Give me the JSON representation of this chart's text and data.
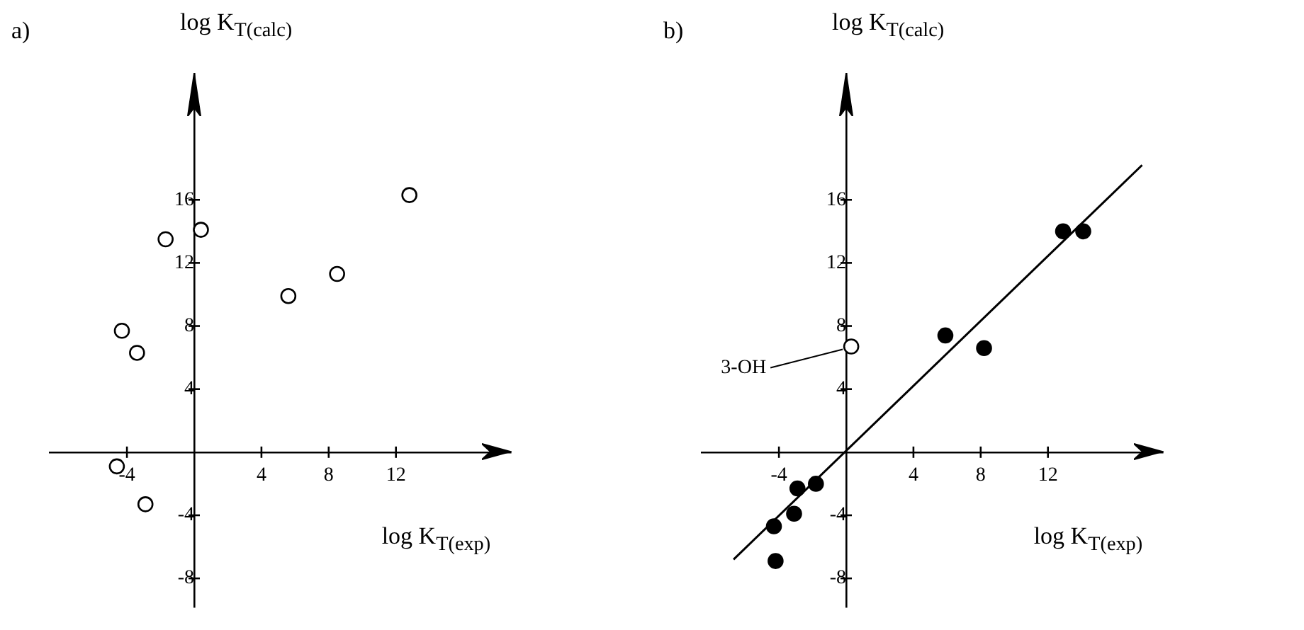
{
  "chart_data": [
    {
      "type": "scatter",
      "title": "a)",
      "xlabel": "log K$_{T(exp)}$",
      "ylabel": "log K$_{T(calc)}$",
      "xlim": [
        -8.6,
        18.8
      ],
      "ylim": [
        -9.8,
        24
      ],
      "xticks": [
        -4,
        4,
        8,
        12
      ],
      "yticks": [
        -8,
        -4,
        4,
        8,
        12,
        16
      ],
      "grid": false,
      "legend": false,
      "marker": "circle",
      "series": [
        {
          "color": "#ffffff",
          "x": [
            -4.3,
            -3.4,
            -1.7,
            0.4,
            5.6,
            8.5,
            12.8,
            -4.6,
            -2.9
          ],
          "values": [
            7.7,
            6.3,
            13.5,
            14.1,
            9.9,
            11.3,
            16.3,
            -0.9,
            -3.3
          ]
        }
      ]
    },
    {
      "type": "scatter",
      "title": "b)",
      "xlabel": "log K$_{T(exp)}$",
      "ylabel": "log K$_{T(calc)}$",
      "xlim": [
        -8.6,
        18.8
      ],
      "ylim": [
        -9.8,
        24
      ],
      "xticks": [
        -4,
        4,
        8,
        12
      ],
      "yticks": [
        -8,
        -4,
        4,
        8,
        12,
        16
      ],
      "grid": false,
      "legend": false,
      "marker": "circle",
      "annotations": [
        {
          "text": "3-OH",
          "x": 0.3,
          "y": 6.7
        }
      ],
      "series": [
        {
          "color": "#000000",
          "x": [
            5.9,
            8.2,
            12.9,
            14.1,
            -2.9,
            -1.8,
            -3.1,
            -4.3,
            -4.2
          ],
          "values": [
            7.4,
            6.6,
            14.0,
            14.0,
            -2.3,
            -2.0,
            -3.9,
            -4.7,
            -6.9
          ]
        },
        {
          "color": "#ffffff",
          "x": [
            0.3
          ],
          "values": [
            6.7
          ]
        },
        {
          "type": "line",
          "color": "#000000",
          "marker": "none",
          "x": [
            -6.7,
            17.6
          ],
          "values": [
            -6.8,
            18.2
          ]
        }
      ]
    }
  ]
}
